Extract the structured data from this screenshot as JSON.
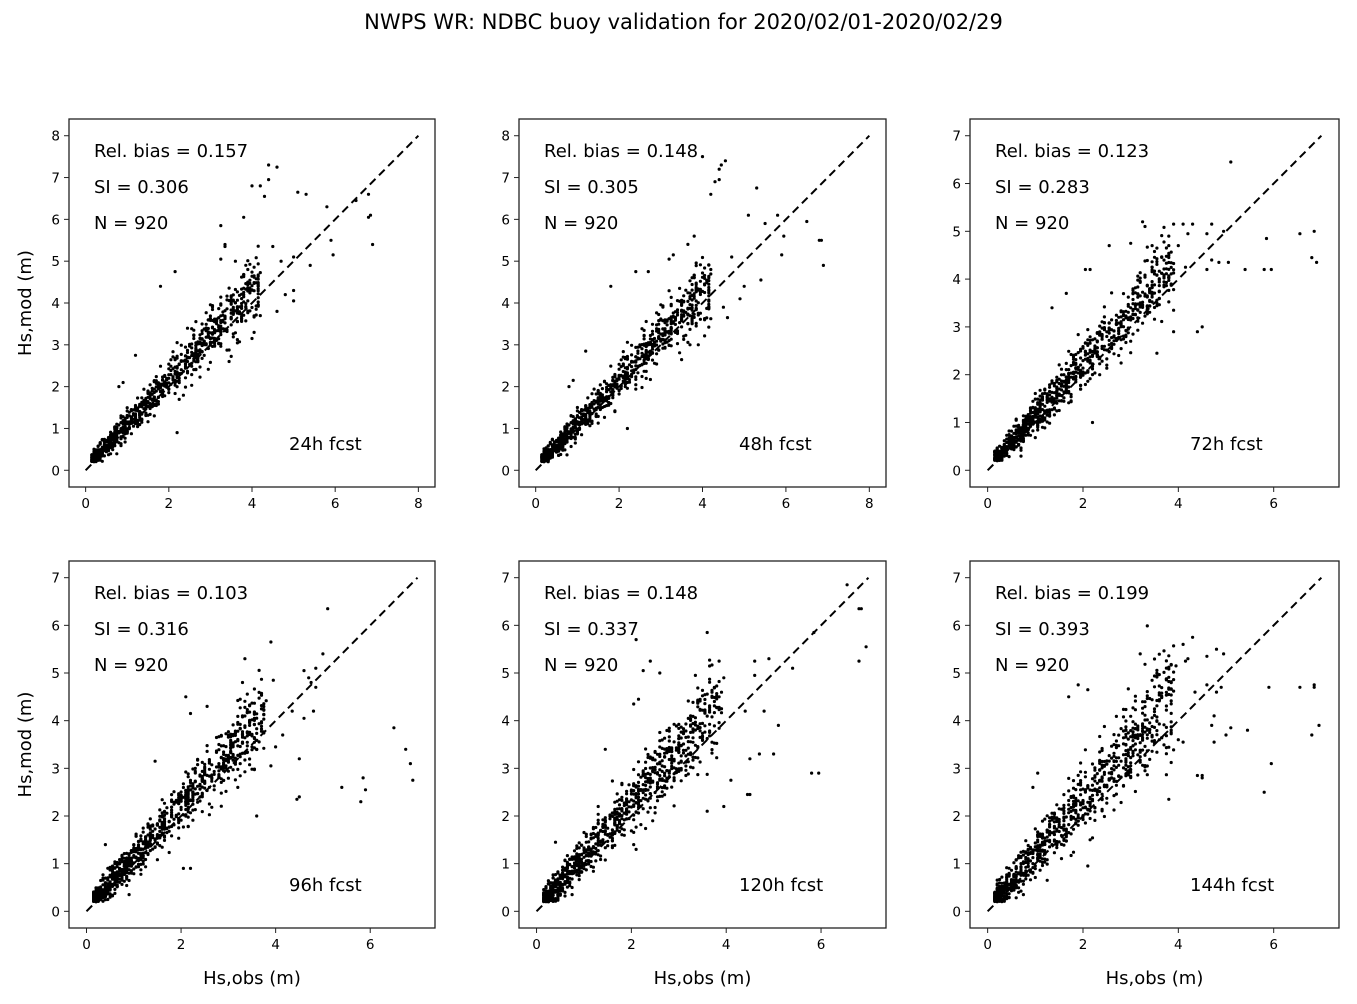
{
  "chart_data": {
    "type": "scatter",
    "title": "NWPS WR: NDBC buoy validation for 2020/02/01-2020/02/29",
    "xlabel": "Hs,obs (m)",
    "ylabel": "Hs,mod (m)",
    "grid": false,
    "reference_line": "1:1 dashed black",
    "marker_color": "#000000",
    "panels": [
      {
        "forecast_label": "24h fcst",
        "rel_bias_label": "Rel. bias =  0.157",
        "si_label": "SI =  0.306",
        "n_label": "N = 920",
        "rel_bias": 0.157,
        "si": 0.306,
        "n": 920,
        "xlim": [
          -0.4,
          8.4
        ],
        "ylim": [
          -0.4,
          8.4
        ],
        "xticks": [
          0,
          2,
          4,
          6,
          8
        ],
        "yticks": [
          0,
          1,
          2,
          3,
          4,
          5,
          6,
          7,
          8
        ],
        "show_ylabel": true,
        "show_xlabel": false,
        "outliers": [
          [
            4.4,
            7.3
          ],
          [
            4.6,
            7.25
          ],
          [
            4.0,
            6.8
          ],
          [
            4.2,
            6.8
          ],
          [
            4.4,
            6.95
          ],
          [
            4.3,
            6.55
          ],
          [
            3.8,
            6.05
          ],
          [
            5.1,
            6.65
          ],
          [
            5.3,
            6.6
          ],
          [
            5.8,
            6.3
          ],
          [
            6.5,
            6.45
          ],
          [
            6.8,
            6.6
          ],
          [
            6.8,
            6.05
          ],
          [
            6.85,
            6.1
          ],
          [
            5.9,
            5.5
          ],
          [
            5.95,
            5.15
          ],
          [
            6.9,
            5.4
          ],
          [
            3.25,
            5.85
          ],
          [
            3.35,
            5.4
          ],
          [
            3.35,
            5.35
          ],
          [
            4.5,
            5.35
          ],
          [
            5.4,
            4.9
          ],
          [
            5.0,
            5.1
          ],
          [
            4.7,
            5.0
          ],
          [
            3.6,
            5.0
          ],
          [
            3.25,
            5.05
          ],
          [
            4.6,
            3.8
          ],
          [
            5.0,
            4.05
          ],
          [
            5.0,
            4.3
          ],
          [
            4.8,
            4.2
          ],
          [
            2.2,
            0.9
          ],
          [
            1.8,
            4.4
          ],
          [
            2.15,
            4.75
          ],
          [
            4.0,
            3.15
          ],
          [
            3.45,
            2.6
          ],
          [
            1.2,
            2.75
          ],
          [
            0.9,
            2.1
          ],
          [
            0.8,
            2.0
          ],
          [
            4.05,
            4.65
          ],
          [
            3.9,
            4.5
          ]
        ],
        "cloud": {
          "n": 880,
          "slope": 1.06,
          "spread": 0.25,
          "xmax": 4.2
        }
      },
      {
        "forecast_label": "48h fcst",
        "rel_bias_label": "Rel. bias =  0.148",
        "si_label": "SI =  0.305",
        "n_label": "N = 920",
        "rel_bias": 0.148,
        "si": 0.305,
        "n": 920,
        "xlim": [
          -0.4,
          8.4
        ],
        "ylim": [
          -0.4,
          8.4
        ],
        "xticks": [
          0,
          2,
          4,
          6,
          8
        ],
        "yticks": [
          0,
          1,
          2,
          3,
          4,
          5,
          6,
          7,
          8
        ],
        "show_ylabel": false,
        "show_xlabel": false,
        "outliers": [
          [
            4.0,
            7.5
          ],
          [
            4.55,
            7.4
          ],
          [
            4.45,
            7.3
          ],
          [
            4.4,
            7.2
          ],
          [
            4.3,
            6.9
          ],
          [
            4.4,
            6.95
          ],
          [
            4.2,
            6.6
          ],
          [
            5.3,
            6.75
          ],
          [
            5.1,
            6.1
          ],
          [
            5.8,
            6.1
          ],
          [
            5.5,
            5.9
          ],
          [
            6.5,
            5.95
          ],
          [
            6.8,
            5.5
          ],
          [
            6.85,
            5.5
          ],
          [
            5.95,
            5.6
          ],
          [
            5.9,
            5.15
          ],
          [
            6.9,
            4.9
          ],
          [
            3.8,
            5.6
          ],
          [
            3.3,
            5.15
          ],
          [
            3.2,
            5.05
          ],
          [
            4.7,
            5.1
          ],
          [
            5.4,
            4.55
          ],
          [
            5.0,
            4.4
          ],
          [
            4.9,
            4.1
          ],
          [
            4.6,
            3.65
          ],
          [
            4.5,
            3.9
          ],
          [
            3.9,
            3.0
          ],
          [
            2.2,
            1.0
          ],
          [
            1.8,
            4.4
          ],
          [
            2.4,
            4.75
          ],
          [
            2.7,
            4.75
          ],
          [
            1.2,
            2.85
          ],
          [
            0.9,
            2.15
          ],
          [
            0.8,
            2.0
          ],
          [
            4.2,
            4.8
          ],
          [
            3.85,
            3.45
          ]
        ],
        "cloud": {
          "n": 884,
          "slope": 1.05,
          "spread": 0.26,
          "xmax": 4.2
        }
      },
      {
        "forecast_label": "72h fcst",
        "rel_bias_label": "Rel. bias =  0.123",
        "si_label": "SI =  0.283",
        "n_label": "N = 920",
        "rel_bias": 0.123,
        "si": 0.283,
        "n": 920,
        "xlim": [
          -0.37,
          7.37
        ],
        "ylim": [
          -0.35,
          7.35
        ],
        "xticks": [
          0,
          2,
          4,
          6
        ],
        "yticks": [
          0,
          1,
          2,
          3,
          4,
          5,
          6,
          7
        ],
        "show_ylabel": false,
        "show_xlabel": false,
        "outliers": [
          [
            5.1,
            6.45
          ],
          [
            3.25,
            5.2
          ],
          [
            3.3,
            5.1
          ],
          [
            3.9,
            5.15
          ],
          [
            4.1,
            5.15
          ],
          [
            4.3,
            5.15
          ],
          [
            4.7,
            5.15
          ],
          [
            4.6,
            4.95
          ],
          [
            4.95,
            5.0
          ],
          [
            3.8,
            4.9
          ],
          [
            4.0,
            4.7
          ],
          [
            4.2,
            4.95
          ],
          [
            6.55,
            4.95
          ],
          [
            6.85,
            5.0
          ],
          [
            6.8,
            4.45
          ],
          [
            6.9,
            4.35
          ],
          [
            5.85,
            4.85
          ],
          [
            5.8,
            4.2
          ],
          [
            5.95,
            4.2
          ],
          [
            5.4,
            4.2
          ],
          [
            5.05,
            4.35
          ],
          [
            4.6,
            4.2
          ],
          [
            4.7,
            4.4
          ],
          [
            4.85,
            4.35
          ],
          [
            4.4,
            2.9
          ],
          [
            4.5,
            3.0
          ],
          [
            3.9,
            2.9
          ],
          [
            3.55,
            2.45
          ],
          [
            2.2,
            1.0
          ],
          [
            1.35,
            3.4
          ],
          [
            1.65,
            3.7
          ],
          [
            2.55,
            4.7
          ],
          [
            3.0,
            4.75
          ],
          [
            3.45,
            4.7
          ],
          [
            2.05,
            4.2
          ],
          [
            2.15,
            4.2
          ],
          [
            4.15,
            4.25
          ],
          [
            3.9,
            3.35
          ]
        ],
        "cloud": {
          "n": 882,
          "slope": 1.08,
          "spread": 0.27,
          "xmax": 3.9
        }
      },
      {
        "forecast_label": "96h fcst",
        "rel_bias_label": "Rel. bias =  0.103",
        "si_label": "SI =  0.316",
        "n_label": "N = 920",
        "rel_bias": 0.103,
        "si": 0.316,
        "n": 920,
        "xlim": [
          -0.37,
          7.37
        ],
        "ylim": [
          -0.35,
          7.35
        ],
        "xticks": [
          0,
          2,
          4,
          6
        ],
        "yticks": [
          0,
          1,
          2,
          3,
          4,
          5,
          6,
          7
        ],
        "show_ylabel": true,
        "show_xlabel": true,
        "outliers": [
          [
            5.1,
            6.35
          ],
          [
            3.9,
            5.65
          ],
          [
            3.35,
            5.3
          ],
          [
            3.3,
            4.8
          ],
          [
            3.95,
            4.85
          ],
          [
            5.0,
            5.4
          ],
          [
            4.85,
            5.1
          ],
          [
            4.6,
            5.05
          ],
          [
            4.7,
            4.9
          ],
          [
            4.75,
            4.8
          ],
          [
            4.85,
            4.7
          ],
          [
            4.8,
            4.2
          ],
          [
            4.6,
            4.05
          ],
          [
            4.35,
            4.2
          ],
          [
            4.15,
            3.7
          ],
          [
            4.0,
            3.45
          ],
          [
            3.9,
            3.05
          ],
          [
            3.6,
            2.0
          ],
          [
            6.5,
            3.85
          ],
          [
            6.75,
            3.4
          ],
          [
            6.85,
            3.1
          ],
          [
            6.9,
            2.75
          ],
          [
            5.85,
            2.8
          ],
          [
            5.9,
            2.55
          ],
          [
            5.8,
            2.3
          ],
          [
            5.4,
            2.6
          ],
          [
            4.5,
            3.2
          ],
          [
            4.45,
            2.35
          ],
          [
            4.5,
            2.4
          ],
          [
            2.05,
            0.9
          ],
          [
            2.2,
            0.9
          ],
          [
            2.1,
            4.5
          ],
          [
            2.2,
            4.15
          ],
          [
            2.55,
            4.3
          ],
          [
            0.4,
            1.4
          ],
          [
            0.9,
            0.35
          ],
          [
            1.45,
            3.15
          ],
          [
            3.25,
            4.45
          ]
        ],
        "cloud": {
          "n": 882,
          "slope": 1.1,
          "spread": 0.3,
          "xmax": 3.8
        }
      },
      {
        "forecast_label": "120h fcst",
        "rel_bias_label": "Rel. bias =  0.148",
        "si_label": "SI =  0.337",
        "n_label": "N = 920",
        "rel_bias": 0.148,
        "si": 0.337,
        "n": 920,
        "xlim": [
          -0.37,
          7.37
        ],
        "ylim": [
          -0.35,
          7.35
        ],
        "xticks": [
          0,
          2,
          4,
          6
        ],
        "yticks": [
          0,
          1,
          2,
          3,
          4,
          5,
          6,
          7
        ],
        "show_ylabel": false,
        "show_xlabel": true,
        "outliers": [
          [
            6.55,
            6.85
          ],
          [
            6.8,
            6.35
          ],
          [
            6.85,
            6.35
          ],
          [
            6.95,
            5.55
          ],
          [
            6.8,
            5.25
          ],
          [
            5.85,
            5.85
          ],
          [
            3.6,
            5.85
          ],
          [
            2.1,
            5.7
          ],
          [
            2.25,
            5.05
          ],
          [
            2.4,
            5.25
          ],
          [
            2.6,
            5.0
          ],
          [
            3.85,
            5.25
          ],
          [
            4.6,
            5.25
          ],
          [
            4.9,
            5.3
          ],
          [
            5.4,
            5.1
          ],
          [
            4.6,
            4.95
          ],
          [
            3.35,
            4.95
          ],
          [
            3.95,
            4.9
          ],
          [
            4.8,
            4.2
          ],
          [
            5.1,
            3.9
          ],
          [
            4.4,
            4.2
          ],
          [
            4.5,
            3.2
          ],
          [
            4.7,
            3.3
          ],
          [
            5.0,
            3.3
          ],
          [
            4.45,
            2.45
          ],
          [
            4.5,
            2.45
          ],
          [
            5.8,
            2.9
          ],
          [
            5.95,
            2.9
          ],
          [
            3.6,
            2.1
          ],
          [
            3.95,
            2.2
          ],
          [
            4.1,
            2.75
          ],
          [
            0.4,
            1.45
          ],
          [
            0.75,
            0.35
          ],
          [
            2.1,
            1.3
          ],
          [
            2.05,
            1.4
          ],
          [
            1.45,
            3.4
          ],
          [
            2.05,
            4.35
          ],
          [
            2.15,
            4.45
          ]
        ],
        "cloud": {
          "n": 882,
          "slope": 1.12,
          "spread": 0.32,
          "xmax": 3.9
        }
      },
      {
        "forecast_label": "144h fcst",
        "rel_bias_label": "Rel. bias =  0.199",
        "si_label": "SI =  0.393",
        "n_label": "N = 920",
        "rel_bias": 0.199,
        "si": 0.393,
        "n": 920,
        "xlim": [
          -0.37,
          7.37
        ],
        "ylim": [
          -0.35,
          7.35
        ],
        "xticks": [
          0,
          2,
          4,
          6
        ],
        "yticks": [
          0,
          1,
          2,
          3,
          4,
          5,
          6,
          7
        ],
        "show_ylabel": false,
        "show_xlabel": true,
        "outliers": [
          [
            4.3,
            5.75
          ],
          [
            4.1,
            5.6
          ],
          [
            4.2,
            5.3
          ],
          [
            4.15,
            5.25
          ],
          [
            3.2,
            5.4
          ],
          [
            3.95,
            5.15
          ],
          [
            4.8,
            5.5
          ],
          [
            4.95,
            5.4
          ],
          [
            4.6,
            5.35
          ],
          [
            4.6,
            4.75
          ],
          [
            4.8,
            4.6
          ],
          [
            4.9,
            4.7
          ],
          [
            4.35,
            4.6
          ],
          [
            5.9,
            4.7
          ],
          [
            6.55,
            4.7
          ],
          [
            6.85,
            4.75
          ],
          [
            6.85,
            4.7
          ],
          [
            6.95,
            3.9
          ],
          [
            6.8,
            3.7
          ],
          [
            5.95,
            3.1
          ],
          [
            5.8,
            2.5
          ],
          [
            5.45,
            3.8
          ],
          [
            5.1,
            3.85
          ],
          [
            5.0,
            3.7
          ],
          [
            4.75,
            3.55
          ],
          [
            4.75,
            4.1
          ],
          [
            4.7,
            3.9
          ],
          [
            4.0,
            3.6
          ],
          [
            4.1,
            3.55
          ],
          [
            4.4,
            2.85
          ],
          [
            4.5,
            2.85
          ],
          [
            4.5,
            2.8
          ],
          [
            3.8,
            2.35
          ],
          [
            2.1,
            0.95
          ],
          [
            2.15,
            1.5
          ],
          [
            1.25,
            0.65
          ],
          [
            0.75,
            0.35
          ],
          [
            0.95,
            2.6
          ],
          [
            1.05,
            2.9
          ],
          [
            1.9,
            4.75
          ],
          [
            1.7,
            4.5
          ],
          [
            2.1,
            4.65
          ]
        ],
        "cloud": {
          "n": 878,
          "slope": 1.15,
          "spread": 0.38,
          "xmax": 3.9
        }
      }
    ]
  }
}
